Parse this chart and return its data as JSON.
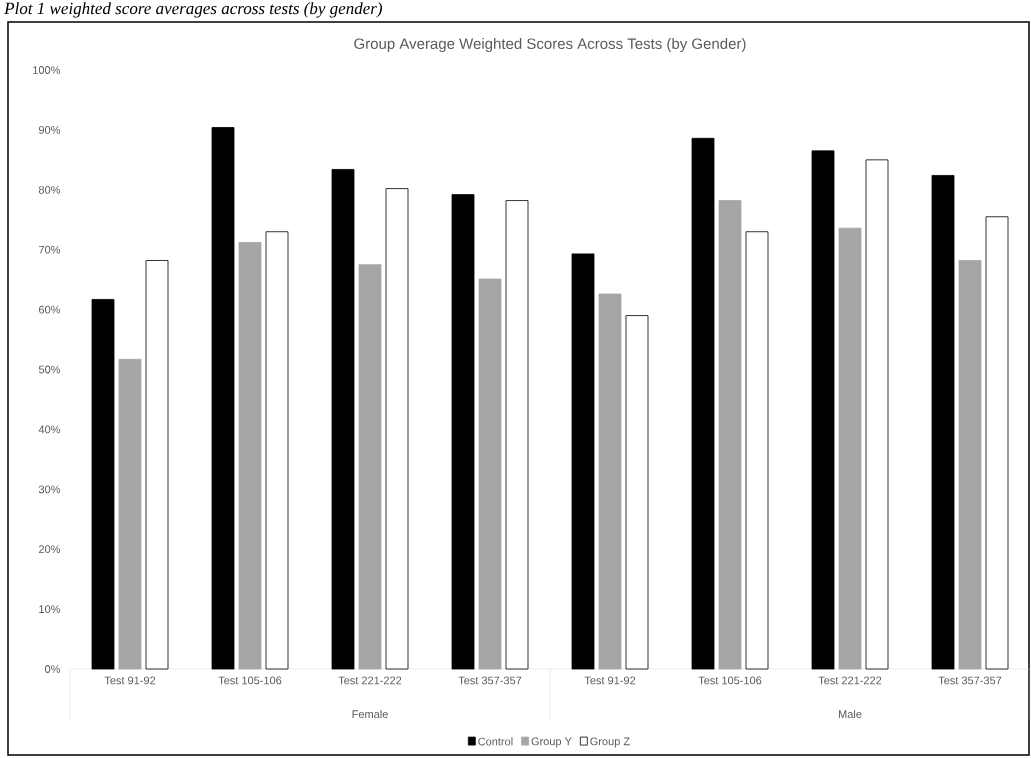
{
  "chart_data": {
    "type": "bar",
    "title": "Group Average Weighted Scores Across Tests (by Gender)",
    "categories": [
      "Test 91-92",
      "Test 105-106",
      "Test 221-222",
      "Test 357-357",
      "Test 91-92",
      "Test 105-106",
      "Test 221-222",
      "Test 357-357"
    ],
    "series": [
      {
        "name": "Control",
        "color": "#000000",
        "values": [
          61.7,
          90.4,
          83.4,
          79.2,
          69.3,
          88.6,
          86.5,
          82.4
        ]
      },
      {
        "name": "Group Y",
        "color": "#a6a6a6",
        "values": [
          51.7,
          71.2,
          67.5,
          65.1,
          62.6,
          78.2,
          73.6,
          68.2
        ]
      },
      {
        "name": "Group Z",
        "color": "#ffffff",
        "values": [
          68.2,
          73.0,
          80.2,
          78.2,
          59.0,
          73.0,
          85.0,
          75.5
        ]
      }
    ],
    "ylim": [
      0,
      100
    ],
    "yticks": [
      {
        "value": 0,
        "label": "0%"
      },
      {
        "value": 10,
        "label": "10%"
      },
      {
        "value": 20,
        "label": "20%"
      },
      {
        "value": 30,
        "label": "30%"
      },
      {
        "value": 40,
        "label": "40%"
      },
      {
        "value": 50,
        "label": "50%"
      },
      {
        "value": 60,
        "label": "60%"
      },
      {
        "value": 70,
        "label": "70%"
      },
      {
        "value": 80,
        "label": "80%"
      },
      {
        "value": 90,
        "label": "90%"
      },
      {
        "value": 100,
        "label": "100%"
      }
    ],
    "legend": "bottom",
    "annotations": [
      "Plot 1 weighted score averages across tests (by gender)",
      "Female",
      "Male"
    ]
  }
}
